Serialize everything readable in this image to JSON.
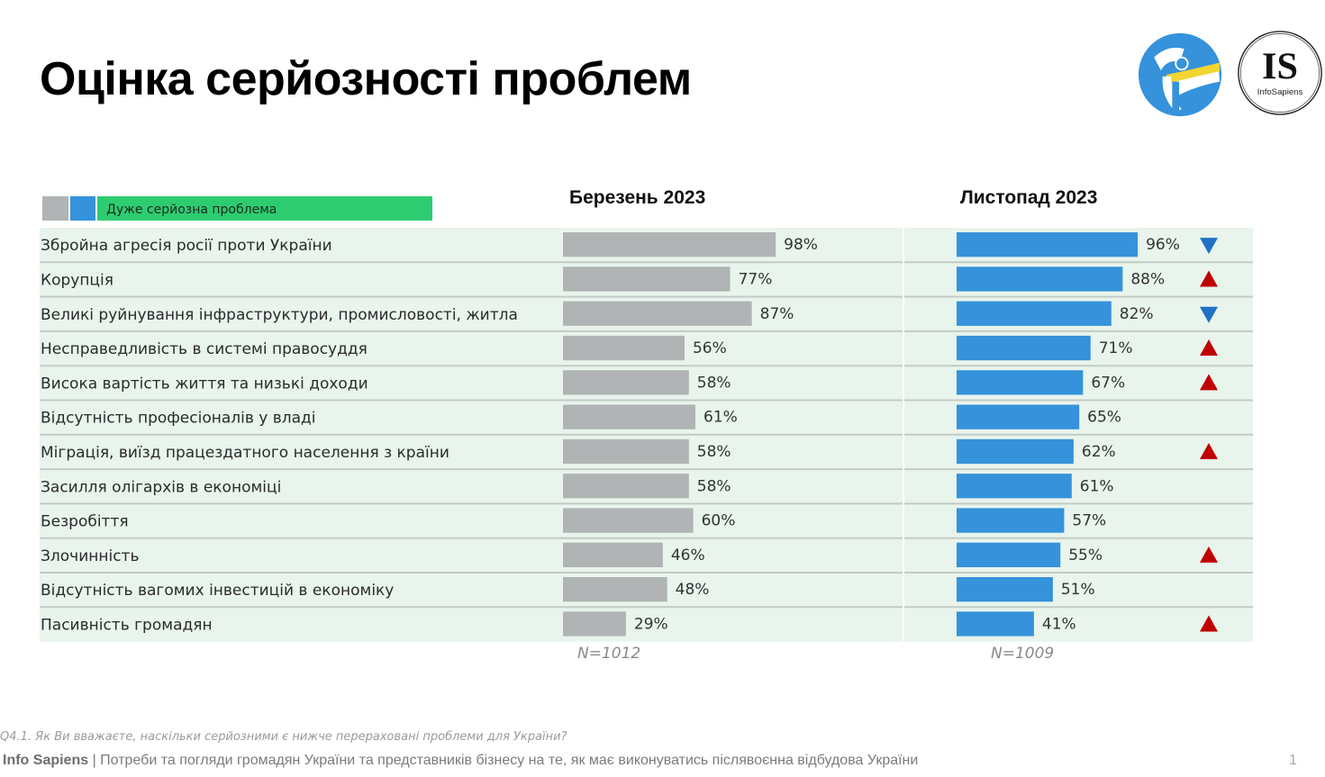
{
  "title": "Оцінка серйозності проблем",
  "logos": {
    "left": "Transparency International Ukraine",
    "right_letters": "IS",
    "right_name": "InfoSapiens"
  },
  "legend": {
    "label": "Дуже серйозна проблема",
    "colors": {
      "march": "#b0b4b4",
      "november": "#3592db",
      "label_bg": "#2ecc71"
    }
  },
  "columns": {
    "march": {
      "header": "Березень 2023",
      "n": "N=1012"
    },
    "november": {
      "header": "Листопад 2023",
      "n": "N=1009"
    }
  },
  "question": "Q4.1. Як Ви вважаєте, наскільки серйозними є нижче перераховані проблеми для України?",
  "footer": {
    "brand": "Info Sapiens",
    "separator": " | ",
    "text": "Потреби та погляди громадян України та представників бізнесу на те, як має виконуватись післявоєнна відбудова України",
    "page": "1"
  },
  "chart_data": {
    "type": "bar",
    "orientation": "horizontal",
    "title": "Оцінка серйозності проблем",
    "legend": [
      "Дуже серйозна проблема"
    ],
    "categories": [
      "Збройна агресія росії проти України",
      "Корупція",
      "Великі руйнування інфраструктури, промисловості, житла",
      "Несправедливість в системі правосуддя",
      "Висока вартість життя та низькі доходи",
      "Відсутність професіоналів у владі",
      "Міграція, виїзд працездатного населення з країни",
      "Засилля олігархів в економіці",
      "Безробіття",
      "Злочинність",
      "Відсутність вагомих інвестицій в економіку",
      "Пасивність громадян"
    ],
    "series": [
      {
        "name": "Березень 2023",
        "color": "#b0b4b4",
        "n": "N=1012",
        "values": [
          98,
          77,
          87,
          56,
          58,
          61,
          58,
          58,
          60,
          46,
          48,
          29
        ]
      },
      {
        "name": "Листопад 2023",
        "color": "#3592db",
        "n": "N=1009",
        "values": [
          96,
          88,
          82,
          71,
          67,
          65,
          62,
          61,
          57,
          55,
          51,
          41
        ]
      }
    ],
    "change_markers": [
      "down",
      "up",
      "down",
      "up",
      "up",
      null,
      "up",
      null,
      null,
      "up",
      null,
      "up"
    ],
    "marker_colors": {
      "up": "#c00000",
      "down": "#1f72c4"
    },
    "value_suffix": "%",
    "xlim": [
      0,
      100
    ],
    "grid": false
  }
}
